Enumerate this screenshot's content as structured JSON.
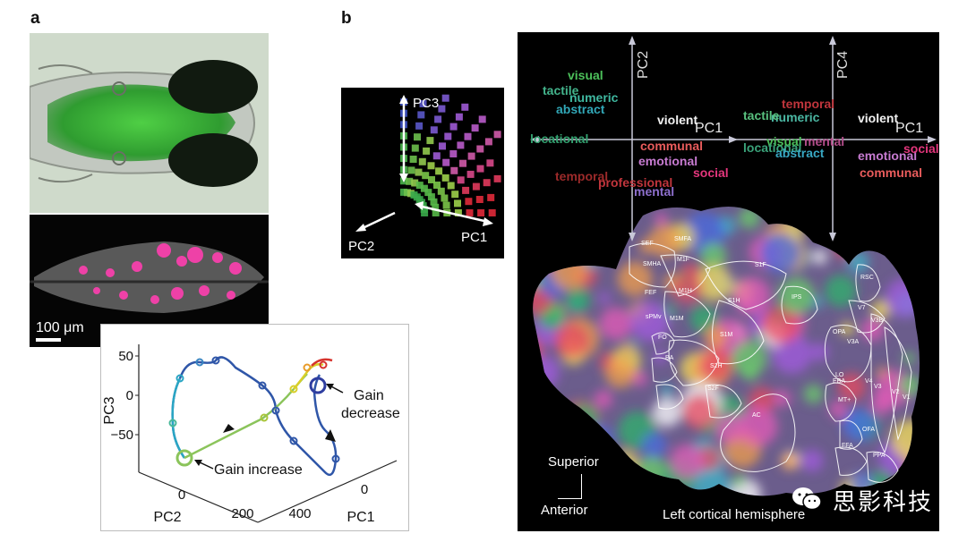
{
  "panels": {
    "a": "a",
    "b": "b"
  },
  "scale_bar": "100 μm",
  "trajectory": {
    "y_ticks": [
      "50",
      "0",
      "−50"
    ],
    "y_label": "PC3",
    "pc2_ticks": [
      "0",
      "200"
    ],
    "pc2_label": "PC2",
    "pc1_ticks": [
      "400",
      "0"
    ],
    "pc1_label": "PC1",
    "annotations": {
      "gain_decrease_1": "Gain",
      "gain_decrease_2": "decrease",
      "gain_increase": "Gain increase"
    }
  },
  "cube_axes": {
    "pc3": "PC3",
    "pc2": "PC2",
    "pc1": "PC1"
  },
  "semantic_left": {
    "y_axis": "PC2",
    "x_axis": "PC1",
    "words": [
      {
        "text": "visual",
        "color": "#4cc05a"
      },
      {
        "text": "tactile",
        "color": "#43b48c"
      },
      {
        "text": "abstract",
        "color": "#31a7b7"
      },
      {
        "text": "numeric",
        "color": "#3fb8a0"
      },
      {
        "text": "locational",
        "color": "#33a06f"
      },
      {
        "text": "violent",
        "color": "#f2f2f2"
      },
      {
        "text": "communal",
        "color": "#e95c5c"
      },
      {
        "text": "emotional",
        "color": "#c77bd1"
      },
      {
        "text": "social",
        "color": "#e3367c"
      },
      {
        "text": "professional",
        "color": "#c0353c"
      },
      {
        "text": "temporal",
        "color": "#9c2a2a"
      },
      {
        "text": "mental",
        "color": "#8d6fcc"
      }
    ]
  },
  "semantic_right": {
    "y_axis": "PC4",
    "x_axis": "PC1",
    "words": [
      {
        "text": "temporal",
        "color": "#c0353c"
      },
      {
        "text": "numeric",
        "color": "#4bb7a3"
      },
      {
        "text": "tactile",
        "color": "#58c07e"
      },
      {
        "text": "violent",
        "color": "#f2f2f2"
      },
      {
        "text": "visual",
        "color": "#4cc05a"
      },
      {
        "text": "mental",
        "color": "#b24d8a"
      },
      {
        "text": "locational",
        "color": "#3aa27a"
      },
      {
        "text": "abstract",
        "color": "#38a7c2"
      },
      {
        "text": "emotional",
        "color": "#c77bd1"
      },
      {
        "text": "social",
        "color": "#e3367c"
      },
      {
        "text": "communal",
        "color": "#e95c5c"
      }
    ]
  },
  "rois": [
    "SEF",
    "SMFA",
    "SMHA",
    "M1F",
    "S1F",
    "FEF",
    "M1H",
    "S1H",
    "IPS",
    "RSC",
    "sPMv",
    "M1M",
    "S1M",
    "FO",
    "BA",
    "S2H",
    "S2F",
    "AC",
    "V7",
    "V3B",
    "OPA",
    "V3A",
    "LO",
    "EBA",
    "V4",
    "V3",
    "V2",
    "V1",
    "MT+",
    "OFA",
    "FFA",
    "PPA"
  ],
  "orientation": {
    "superior": "Superior",
    "anterior": "Anterior"
  },
  "hemisphere_label": "Left cortical hemisphere",
  "watermark": "思影科技",
  "colors": {
    "gfp_green": "#3fae3a",
    "trajectory_blue": "#2f56a8",
    "trajectory_teal": "#2aa6c4",
    "trajectory_green": "#8bc45b",
    "trajectory_yellow": "#d8cf2a",
    "trajectory_red": "#d6332d",
    "pink_spots": "#ff3fb0"
  }
}
